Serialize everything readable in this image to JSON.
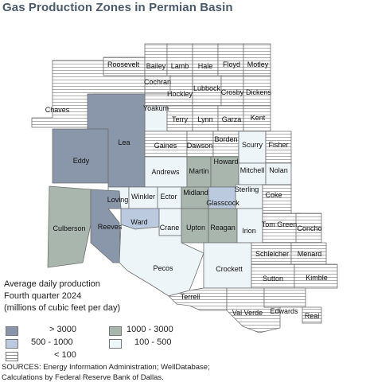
{
  "title": "Gas Production Zones in Permian Basin",
  "legend": {
    "line1": "Average daily production",
    "line2": "Fourth quarter 2024",
    "line3": "(millions of cubic feet per day)",
    "items": {
      "c1": "> 3000",
      "c2": "1000 - 3000",
      "c3": "500 - 1000",
      "c4": "100 - 500",
      "c5": "< 100"
    }
  },
  "colors": {
    "c1": "#8a97aa",
    "c2": "#a9b6ae",
    "c3": "#bccae0",
    "c4": "#edf5f9",
    "c5": "hatched-horizontal"
  },
  "counties": [
    {
      "name": "Roosevelt",
      "class": "c5"
    },
    {
      "name": "Bailey",
      "class": "c5"
    },
    {
      "name": "Lamb",
      "class": "c5"
    },
    {
      "name": "Hale",
      "class": "c5"
    },
    {
      "name": "Floyd",
      "class": "c5"
    },
    {
      "name": "Motley",
      "class": "c5"
    },
    {
      "name": "Cochran",
      "class": "c5"
    },
    {
      "name": "Hockley",
      "class": "c5"
    },
    {
      "name": "Lubbock",
      "class": "c5"
    },
    {
      "name": "Crosby",
      "class": "c5"
    },
    {
      "name": "Dickens",
      "class": "c5"
    },
    {
      "name": "Chaves",
      "class": "c5"
    },
    {
      "name": "Yoakum",
      "class": "c4"
    },
    {
      "name": "Terry",
      "class": "c5"
    },
    {
      "name": "Lynn",
      "class": "c5"
    },
    {
      "name": "Garza",
      "class": "c5"
    },
    {
      "name": "Kent",
      "class": "c5"
    },
    {
      "name": "Eddy",
      "class": "c1"
    },
    {
      "name": "Lea",
      "class": "c1"
    },
    {
      "name": "Gaines",
      "class": "c5"
    },
    {
      "name": "Dawson",
      "class": "c5"
    },
    {
      "name": "Borden",
      "class": "c5"
    },
    {
      "name": "Scurry",
      "class": "c4"
    },
    {
      "name": "Fisher",
      "class": "c5"
    },
    {
      "name": "Andrews",
      "class": "c4"
    },
    {
      "name": "Martin",
      "class": "c2"
    },
    {
      "name": "Howard",
      "class": "c2"
    },
    {
      "name": "Mitchell",
      "class": "c4"
    },
    {
      "name": "Nolan",
      "class": "c4"
    },
    {
      "name": "Loving",
      "class": "c4"
    },
    {
      "name": "Winkler",
      "class": "c4"
    },
    {
      "name": "Ector",
      "class": "c4"
    },
    {
      "name": "Midland",
      "class": "c2"
    },
    {
      "name": "Glasscock",
      "class": "c3"
    },
    {
      "name": "Sterling",
      "class": "c4"
    },
    {
      "name": "Coke",
      "class": "c5"
    },
    {
      "name": "Culberson",
      "class": "c2"
    },
    {
      "name": "Reeves",
      "class": "c1"
    },
    {
      "name": "Ward",
      "class": "c3"
    },
    {
      "name": "Crane",
      "class": "c4"
    },
    {
      "name": "Upton",
      "class": "c2"
    },
    {
      "name": "Reagan",
      "class": "c2"
    },
    {
      "name": "Irion",
      "class": "c4"
    },
    {
      "name": "Tom Green",
      "class": "c5"
    },
    {
      "name": "Concho",
      "class": "c5"
    },
    {
      "name": "Pecos",
      "class": "c4"
    },
    {
      "name": "Crockett",
      "class": "c4"
    },
    {
      "name": "Schleicher",
      "class": "c5"
    },
    {
      "name": "Menard",
      "class": "c5"
    },
    {
      "name": "Sutton",
      "class": "c5"
    },
    {
      "name": "Kimble",
      "class": "c5"
    },
    {
      "name": "Terrell",
      "class": "c5"
    },
    {
      "name": "Val Verde",
      "class": "c5"
    },
    {
      "name": "Edwards",
      "class": "c5"
    },
    {
      "name": "Real",
      "class": "c5"
    }
  ],
  "sources": {
    "line1": "SOURCES: Energy Information Administration; WellDatabase;",
    "line2": "Calculations by Federal Reserve Bank of Dallas."
  }
}
